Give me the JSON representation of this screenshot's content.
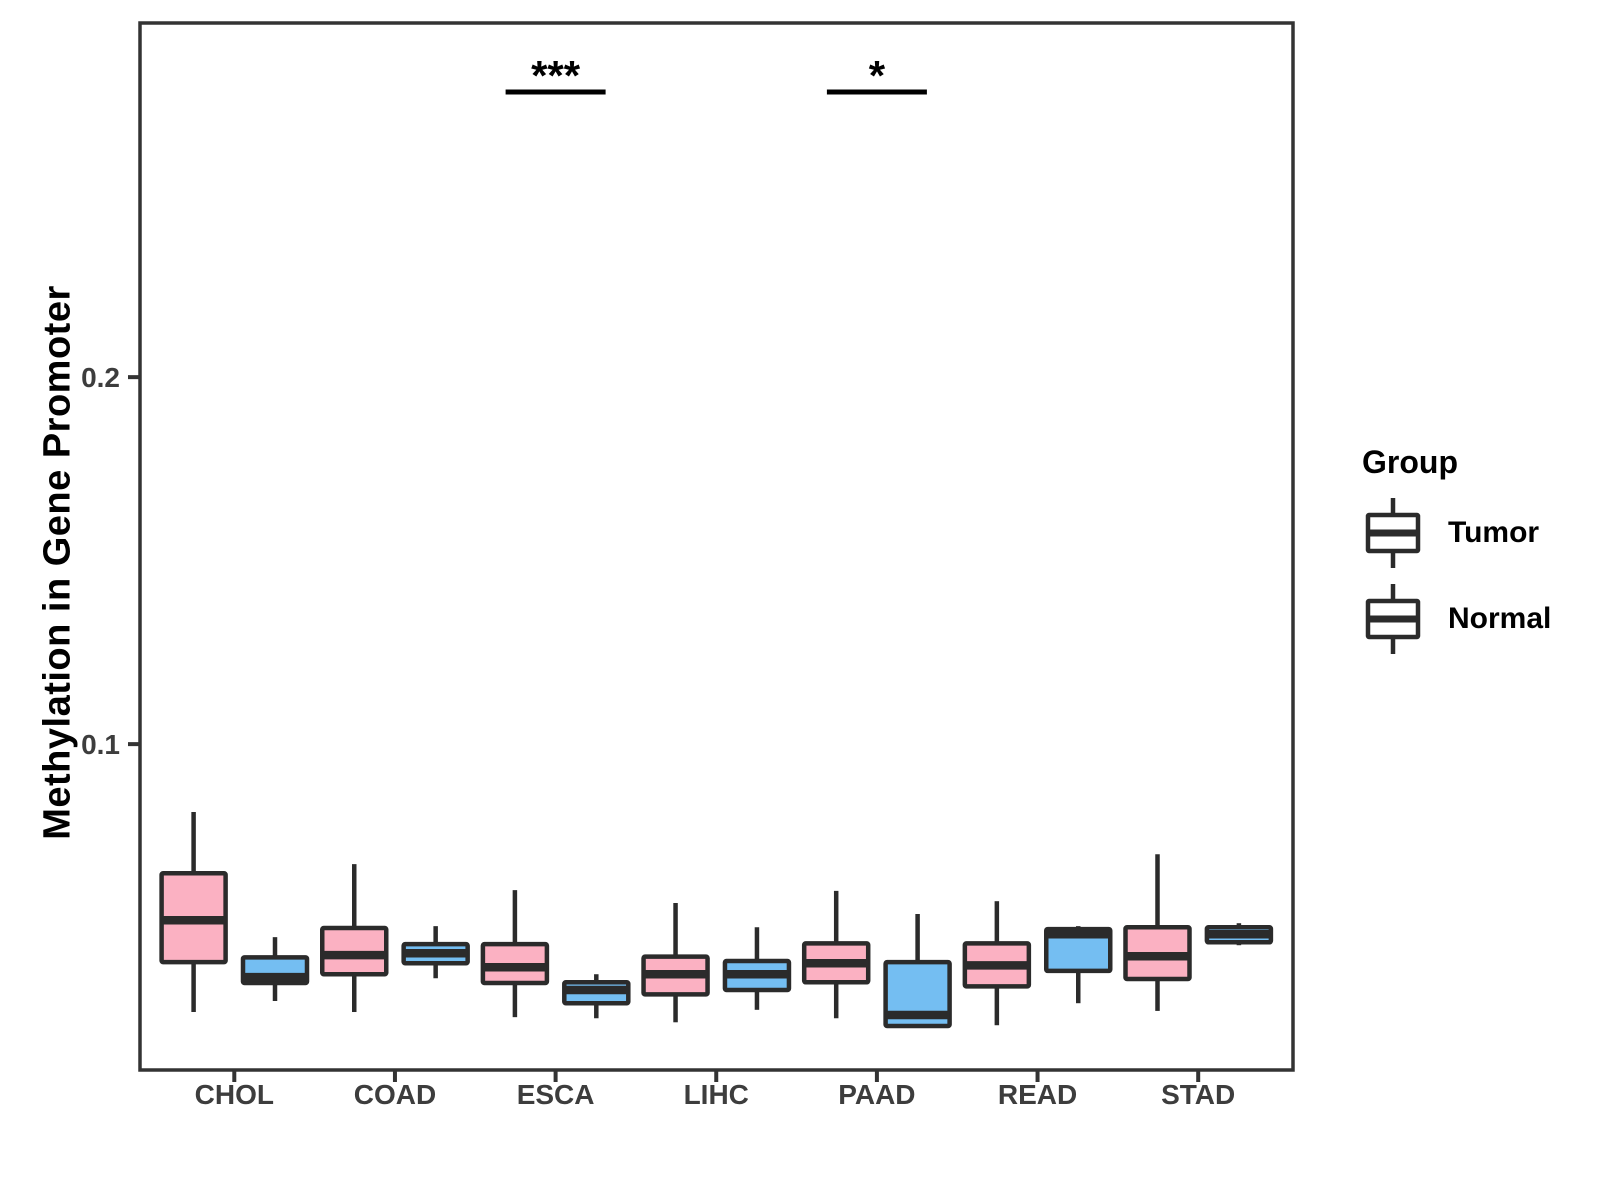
{
  "figure": {
    "y_axis_title": "Methylation in Gene Promoter",
    "legend": {
      "title": "Group",
      "items": [
        {
          "label": "Tumor",
          "color": "#FBB1C2"
        },
        {
          "label": "Normal",
          "color": "#74BEF2"
        }
      ]
    }
  },
  "chart_data": {
    "type": "grouped_boxplot",
    "title": "",
    "xlabel": "",
    "ylabel": "Methylation in Gene Promoter",
    "categories": [
      "CHOL",
      "COAD",
      "ESCA",
      "LIHC",
      "PAAD",
      "READ",
      "STAD"
    ],
    "yticks": [
      "0.1",
      "0.2"
    ],
    "ytick_values": [
      0.1,
      0.2
    ],
    "ylim": [
      0.0112,
      0.2965
    ],
    "grid": false,
    "legend_position": "right",
    "outline_color": "#2b2b2b",
    "axis_color": "#333333",
    "tick_label_color": "#3d3d3d",
    "series": [
      {
        "name": "Tumor",
        "color": "#FBB1C2",
        "boxes": [
          {
            "category": "CHOL",
            "low": 0.027,
            "q1": 0.0406,
            "median": 0.052,
            "q3": 0.0648,
            "high": 0.0815
          },
          {
            "category": "COAD",
            "low": 0.027,
            "q1": 0.0373,
            "median": 0.0425,
            "q3": 0.0499,
            "high": 0.0673
          },
          {
            "category": "ESCA",
            "low": 0.0256,
            "q1": 0.0349,
            "median": 0.0392,
            "q3": 0.0455,
            "high": 0.0602
          },
          {
            "category": "LIHC",
            "low": 0.0242,
            "q1": 0.0318,
            "median": 0.0373,
            "q3": 0.0421,
            "high": 0.0567
          },
          {
            "category": "PAAD",
            "low": 0.0253,
            "q1": 0.0351,
            "median": 0.0403,
            "q3": 0.0457,
            "high": 0.06
          },
          {
            "category": "READ",
            "low": 0.0234,
            "q1": 0.034,
            "median": 0.0397,
            "q3": 0.0457,
            "high": 0.0572
          },
          {
            "category": "STAD",
            "low": 0.0273,
            "q1": 0.036,
            "median": 0.0422,
            "q3": 0.0501,
            "high": 0.07
          }
        ]
      },
      {
        "name": "Normal",
        "color": "#74BEF2",
        "boxes": [
          {
            "category": "CHOL",
            "low": 0.03,
            "q1": 0.0349,
            "median": 0.0365,
            "q3": 0.0419,
            "high": 0.0474
          },
          {
            "category": "COAD",
            "low": 0.0362,
            "q1": 0.0403,
            "median": 0.043,
            "q3": 0.0455,
            "high": 0.0504
          },
          {
            "category": "ESCA",
            "low": 0.0253,
            "q1": 0.0294,
            "median": 0.033,
            "q3": 0.0351,
            "high": 0.0373
          },
          {
            "category": "LIHC",
            "low": 0.0276,
            "q1": 0.033,
            "median": 0.0373,
            "q3": 0.0409,
            "high": 0.0501
          },
          {
            "category": "PAAD",
            "low": 0.0232,
            "q1": 0.0232,
            "median": 0.0262,
            "q3": 0.0406,
            "high": 0.0537
          },
          {
            "category": "READ",
            "low": 0.0294,
            "q1": 0.0382,
            "median": 0.0482,
            "q3": 0.0496,
            "high": 0.0504
          },
          {
            "category": "STAD",
            "low": 0.0452,
            "q1": 0.046,
            "median": 0.0482,
            "q3": 0.0501,
            "high": 0.0512
          }
        ]
      }
    ],
    "annotations": [
      {
        "category": "ESCA",
        "label": "***",
        "bar_y": 0.2777
      },
      {
        "category": "PAAD",
        "label": "*",
        "bar_y": 0.2777
      }
    ]
  }
}
